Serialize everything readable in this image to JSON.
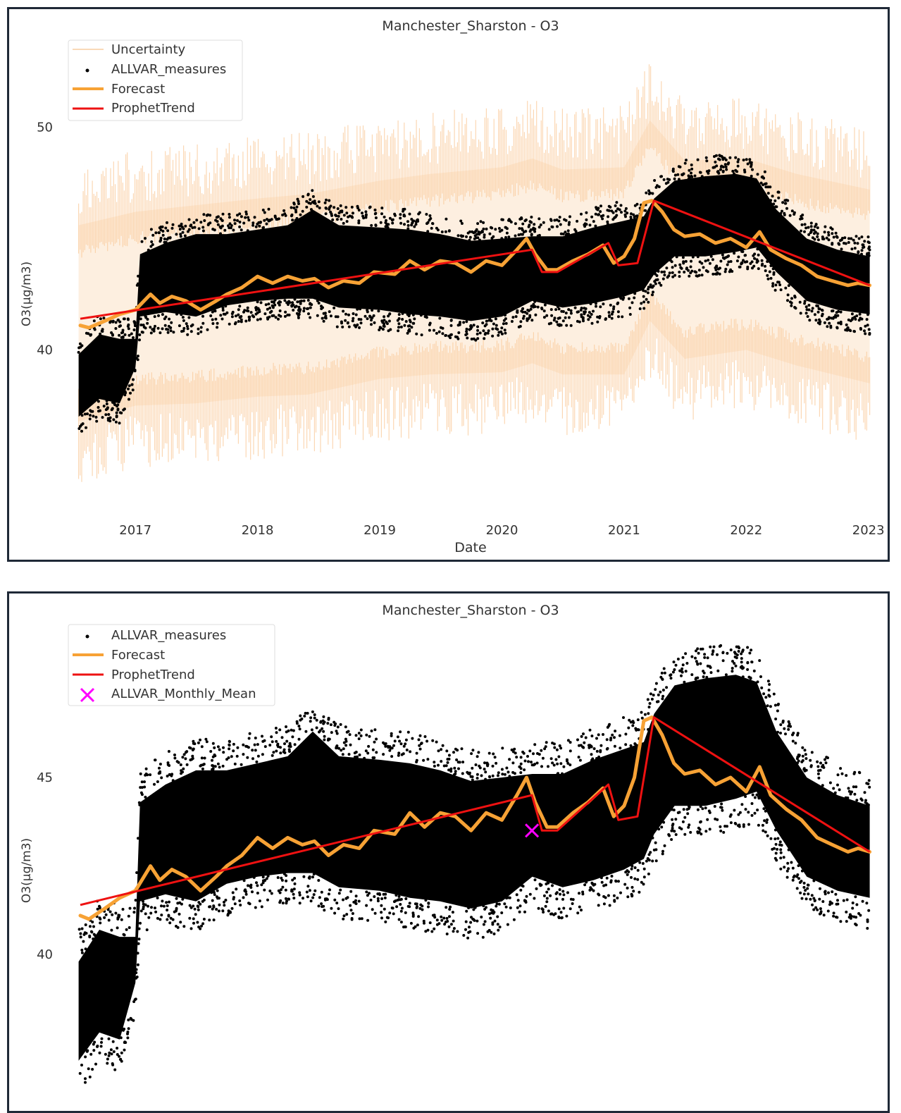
{
  "chart_data": [
    {
      "type": "scatter",
      "title": "Manchester_Sharston - O3",
      "xlabel": "Date",
      "ylabel": "O3(µg/m3)",
      "x_ticks": [
        "2017",
        "2018",
        "2019",
        "2020",
        "2021",
        "2022",
        "2023"
      ],
      "y_ticks": [
        40,
        50
      ],
      "xlim": [
        "2016-07-01",
        "2023-01-10"
      ],
      "ylim": [
        32.8,
        53.4
      ],
      "grid": false,
      "legend_position": "top-left",
      "legend": [
        "Uncertainty",
        "ALLVAR_measures",
        "Forecast",
        "ProphetTrend"
      ],
      "colors": {
        "uncertainty_fill": "#fdefe0",
        "uncertainty_edge": "#f9c99a",
        "measures": "#000000",
        "forecast": "#f7a235",
        "trend": "#ee1111"
      },
      "series": [
        {
          "name": "ProphetTrend",
          "x": [
            "2016-07-20",
            "2020-03-31",
            "2020-04-30",
            "2020-06-15",
            "2020-11-15",
            "2020-12-15",
            "2021-02-10",
            "2021-03-31",
            "2023-01-05"
          ],
          "y": [
            41.4,
            44.5,
            43.5,
            43.5,
            44.8,
            43.8,
            43.9,
            46.7,
            42.9
          ]
        },
        {
          "name": "Forecast",
          "x": [
            "2016-07-20",
            "2016-08-15",
            "2016-10-01",
            "2016-11-15",
            "2017-01-01",
            "2017-02-15",
            "2017-03-15",
            "2017-04-20",
            "2017-06-01",
            "2017-07-15",
            "2017-08-30",
            "2017-10-01",
            "2017-11-15",
            "2018-01-01",
            "2018-02-15",
            "2018-04-01",
            "2018-05-15",
            "2018-06-20",
            "2018-08-01",
            "2018-09-15",
            "2018-11-01",
            "2018-12-15",
            "2019-02-15",
            "2019-04-01",
            "2019-05-15",
            "2019-07-01",
            "2019-08-15",
            "2019-10-01",
            "2019-11-15",
            "2020-01-01",
            "2020-02-15",
            "2020-03-15",
            "2020-04-10",
            "2020-05-15",
            "2020-06-15",
            "2020-08-01",
            "2020-09-15",
            "2020-10-30",
            "2020-12-01",
            "2021-01-01",
            "2021-02-01",
            "2021-03-01",
            "2021-03-25",
            "2021-04-25",
            "2021-05-30",
            "2021-07-01",
            "2021-08-15",
            "2021-10-01",
            "2021-11-15",
            "2022-01-01",
            "2022-02-10",
            "2022-03-15",
            "2022-05-01",
            "2022-06-15",
            "2022-08-01",
            "2022-09-15",
            "2022-11-01",
            "2022-12-01",
            "2023-01-05"
          ],
          "y": [
            41.1,
            41.0,
            41.3,
            41.6,
            41.8,
            42.5,
            42.1,
            42.4,
            42.2,
            41.8,
            42.2,
            42.5,
            42.8,
            43.3,
            43.0,
            43.3,
            43.1,
            43.2,
            42.8,
            43.1,
            43.0,
            43.5,
            43.4,
            44.0,
            43.6,
            44.0,
            43.9,
            43.5,
            44.0,
            43.8,
            44.5,
            45.0,
            44.3,
            43.6,
            43.6,
            44.0,
            44.3,
            44.7,
            43.9,
            44.2,
            45.0,
            46.6,
            46.7,
            46.2,
            45.4,
            45.1,
            45.2,
            44.8,
            45.0,
            44.6,
            45.3,
            44.5,
            44.1,
            43.8,
            43.3,
            43.1,
            42.9,
            43.0,
            42.9
          ]
        },
        {
          "name": "ALLVAR_measures (band)",
          "x": [
            "2016-07-15",
            "2016-09-15",
            "2016-11-15",
            "2017-01-01",
            "2017-01-15",
            "2017-04-01",
            "2017-07-01",
            "2017-10-01",
            "2018-01-01",
            "2018-04-01",
            "2018-06-15",
            "2018-09-01",
            "2019-01-01",
            "2019-04-01",
            "2019-07-01",
            "2019-10-01",
            "2020-01-01",
            "2020-04-01",
            "2020-07-01",
            "2020-10-01",
            "2021-01-01",
            "2021-03-01",
            "2021-04-01",
            "2021-06-01",
            "2021-09-01",
            "2021-12-01",
            "2022-02-01",
            "2022-04-01",
            "2022-07-01",
            "2022-10-01",
            "2023-01-05"
          ],
          "lower": [
            37.0,
            37.8,
            37.6,
            39.2,
            41.5,
            41.7,
            41.5,
            42.0,
            42.2,
            42.3,
            42.3,
            41.9,
            41.8,
            41.6,
            41.5,
            41.3,
            41.5,
            42.2,
            41.9,
            42.1,
            42.4,
            42.7,
            43.4,
            44.2,
            44.2,
            44.4,
            44.6,
            43.5,
            42.2,
            41.8,
            41.6
          ],
          "upper": [
            39.8,
            40.7,
            40.5,
            40.5,
            44.3,
            44.8,
            45.2,
            45.2,
            45.4,
            45.6,
            46.3,
            45.6,
            45.5,
            45.4,
            45.2,
            44.9,
            45.0,
            45.1,
            45.1,
            45.5,
            45.8,
            46.0,
            46.8,
            47.6,
            47.8,
            47.9,
            47.7,
            46.3,
            45.0,
            44.5,
            44.2
          ]
        },
        {
          "name": "Uncertainty",
          "x": [
            "2016-07-15",
            "2017-01-01",
            "2017-07-01",
            "2018-01-01",
            "2018-06-01",
            "2019-01-01",
            "2019-06-01",
            "2020-01-01",
            "2020-04-01",
            "2020-07-01",
            "2021-01-01",
            "2021-03-20",
            "2021-07-01",
            "2022-01-01",
            "2022-06-01",
            "2023-01-05"
          ],
          "lower": [
            36.8,
            37.5,
            37.6,
            37.9,
            38.0,
            38.7,
            38.9,
            39.0,
            39.4,
            38.9,
            38.9,
            41.3,
            39.6,
            40.0,
            39.3,
            38.5
          ],
          "upper": [
            45.6,
            46.2,
            46.5,
            46.8,
            47.0,
            47.6,
            47.9,
            48.2,
            48.6,
            48.1,
            48.2,
            50.3,
            48.5,
            48.6,
            47.9,
            47.2
          ]
        }
      ]
    },
    {
      "type": "scatter",
      "title": "Manchester_Sharston - O3",
      "xlabel": "",
      "ylabel": "O3(µg/m3)",
      "y_ticks": [
        40,
        45
      ],
      "xlim": [
        "2016-07-01",
        "2023-01-10"
      ],
      "ylim": [
        36.5,
        49.2
      ],
      "grid": false,
      "legend_position": "top-left",
      "legend": [
        "ALLVAR_measures",
        "Forecast",
        "ProphetTrend",
        "ALLVAR_Monthly_Mean"
      ],
      "colors": {
        "measures": "#000000",
        "forecast": "#f7a235",
        "trend": "#ee1111",
        "monthly_mean": "#ff00ff"
      },
      "series": [
        {
          "name": "ALLVAR_Monthly_Mean",
          "x": [
            "2020-03-31"
          ],
          "y": [
            43.5
          ]
        }
      ]
    }
  ]
}
